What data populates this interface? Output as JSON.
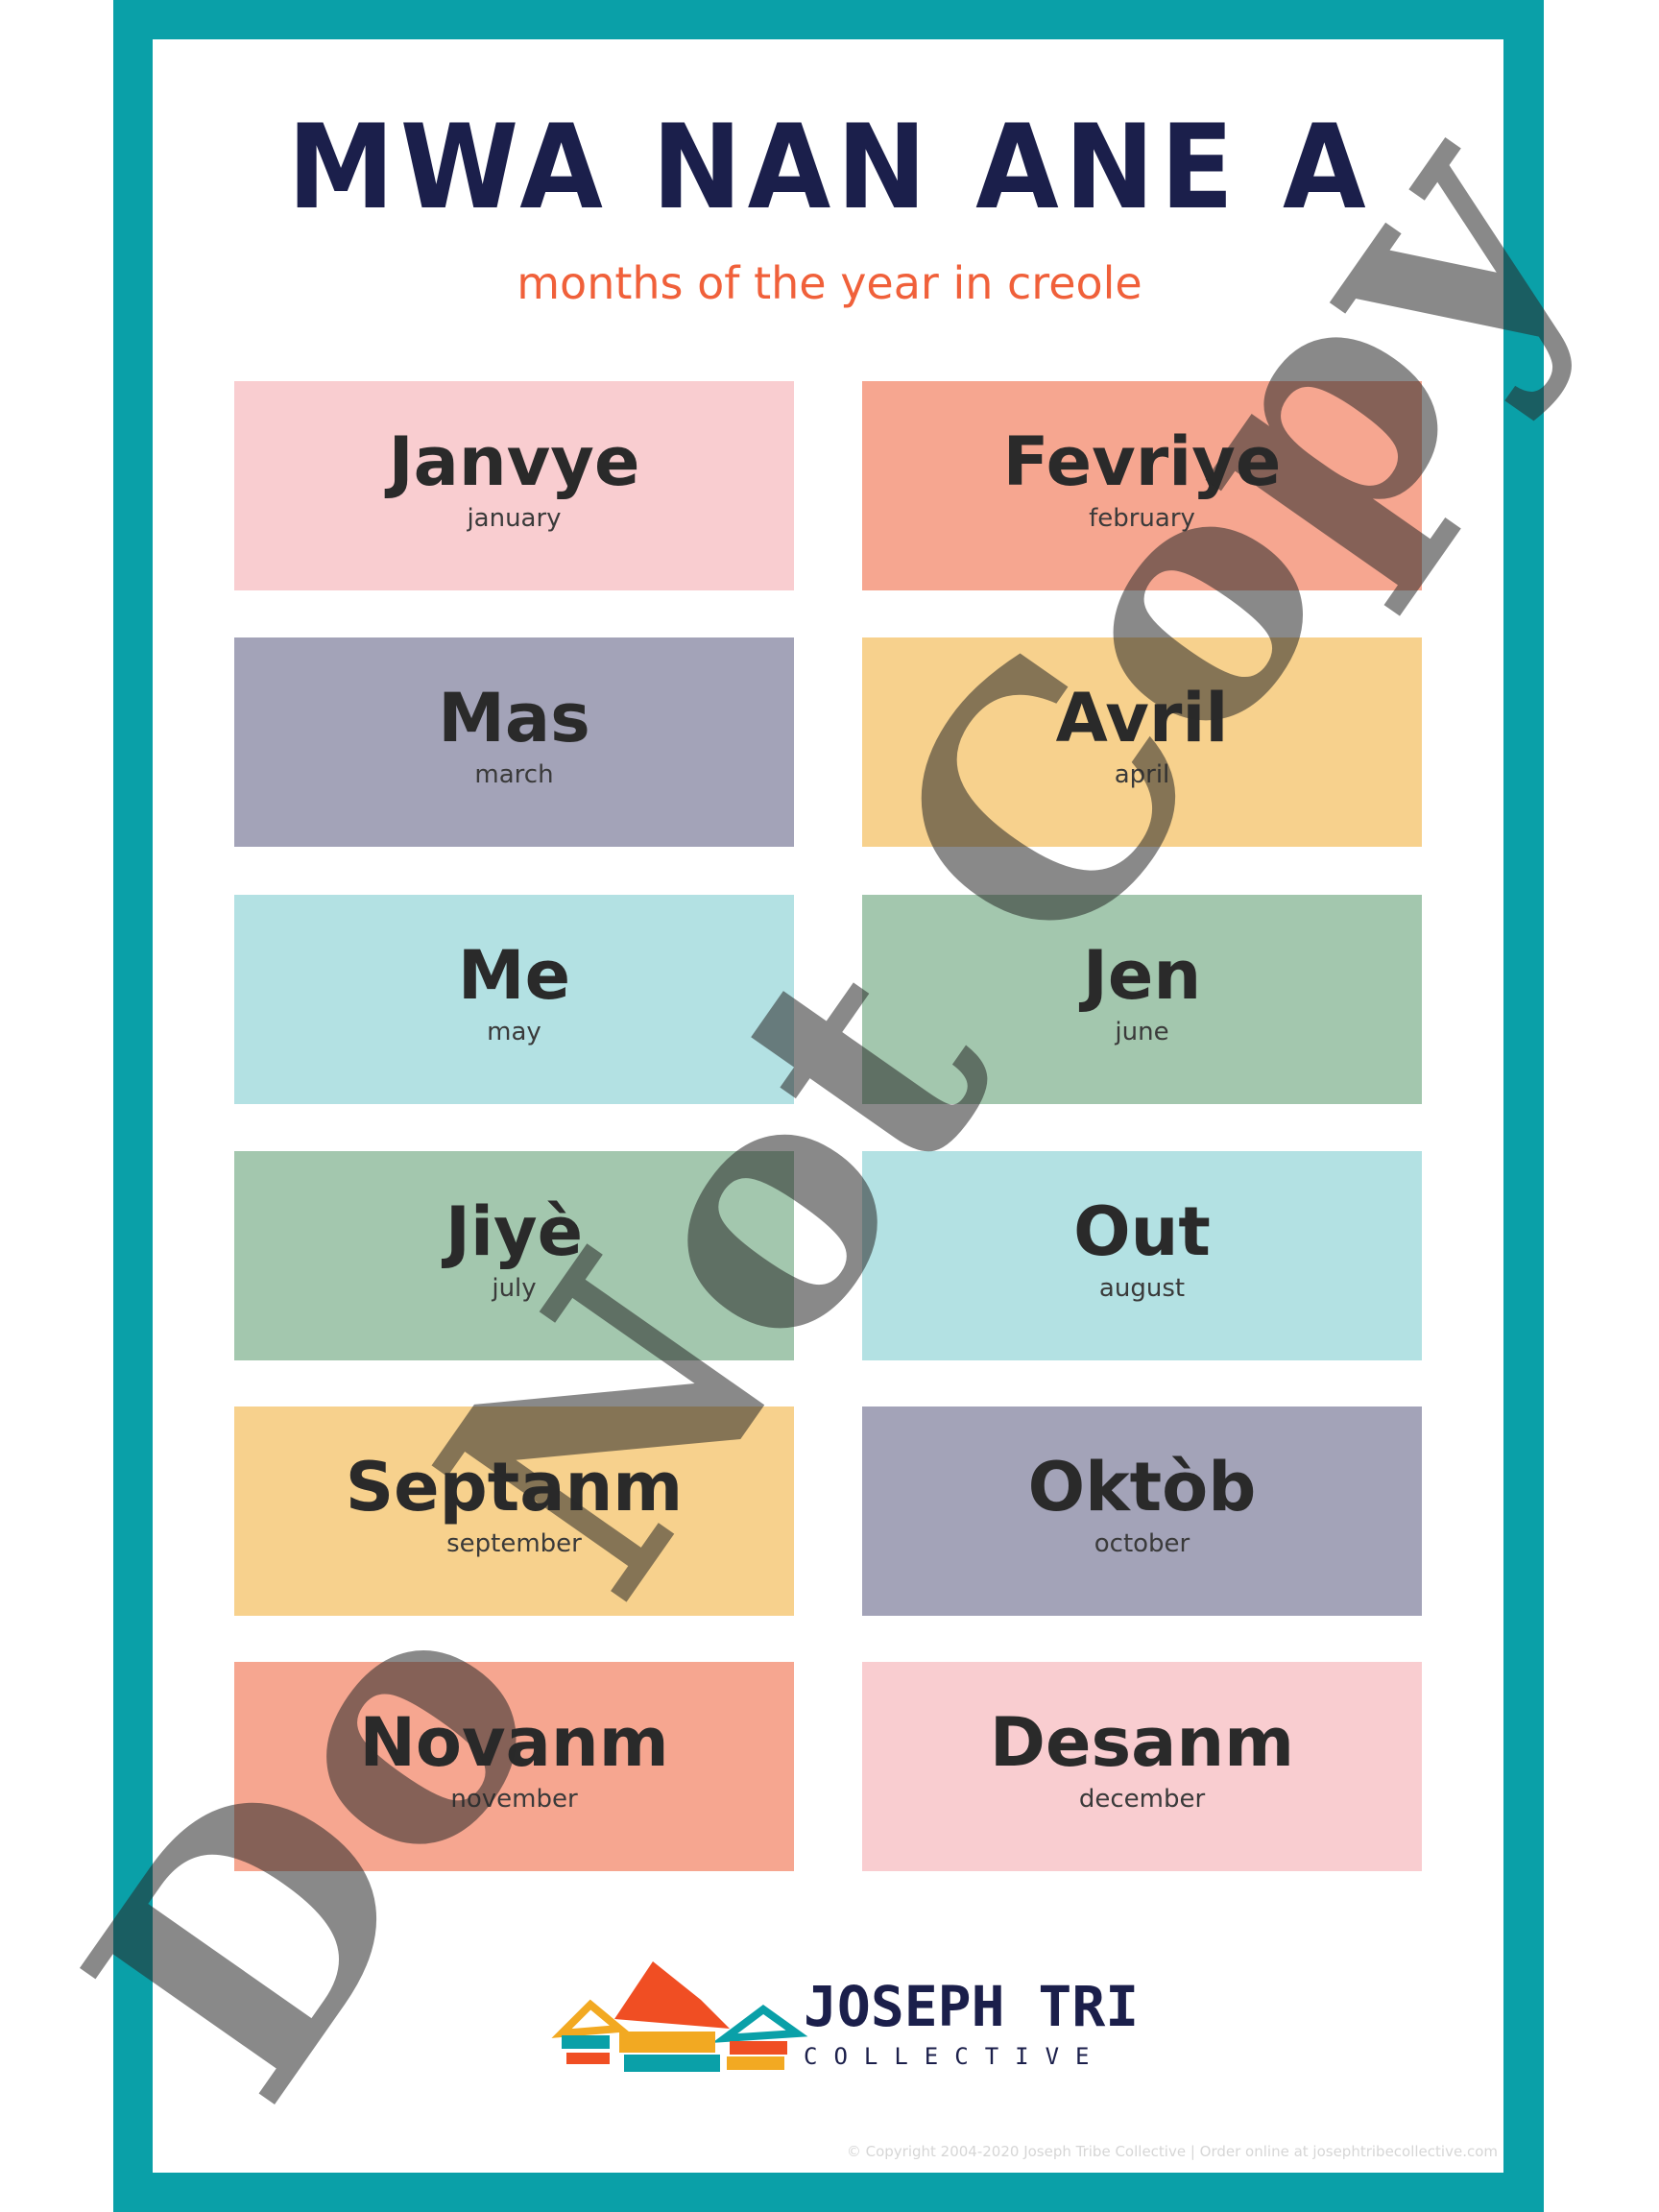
{
  "title": "MWA NAN ANE A",
  "subtitle": "months of the year in creole",
  "months": [
    {
      "name": "Janvye",
      "english": "january",
      "color": "#f9cdd0"
    },
    {
      "name": "Fevriye",
      "english": "february",
      "color": "#f6a690"
    },
    {
      "name": "Mas",
      "english": "march",
      "color": "#a3a3b8"
    },
    {
      "name": "Avril",
      "english": "april",
      "color": "#f7d18d"
    },
    {
      "name": "Me",
      "english": "may",
      "color": "#b3e1e3"
    },
    {
      "name": "Jen",
      "english": "june",
      "color": "#a3c7ae"
    },
    {
      "name": "Jiyè",
      "english": "july",
      "color": "#a3c7ae"
    },
    {
      "name": "Out",
      "english": "august",
      "color": "#b3e1e3"
    },
    {
      "name": "Septanm",
      "english": "september",
      "color": "#f7d18d"
    },
    {
      "name": "Oktòb",
      "english": "october",
      "color": "#a3a3b8"
    },
    {
      "name": "Novanm",
      "english": "november",
      "color": "#f6a690"
    },
    {
      "name": "Desanm",
      "english": "december",
      "color": "#f9cdd0"
    }
  ],
  "logo": {
    "name": "JOSEPH TRIBE",
    "tagline": "COLLECTIVE"
  },
  "copyright": "© Copyright 2004-2020 Joseph Tribe Collective | Order online at josephtribecollective.com",
  "watermark": "Do Not Copy",
  "colors": {
    "frame": "#0aa0a8",
    "title": "#1b1f4b",
    "subtitle": "#f0603a"
  }
}
